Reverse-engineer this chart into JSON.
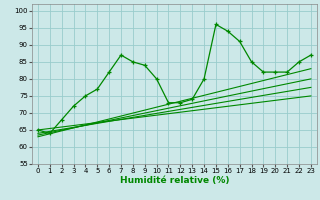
{
  "xlabel": "Humidité relative (%)",
  "bg_color": "#cce8e8",
  "grid_color": "#99cccc",
  "line_color": "#008800",
  "xlim": [
    -0.5,
    23.5
  ],
  "ylim": [
    55,
    102
  ],
  "yticks": [
    55,
    60,
    65,
    70,
    75,
    80,
    85,
    90,
    95,
    100
  ],
  "xticks": [
    0,
    1,
    2,
    3,
    4,
    5,
    6,
    7,
    8,
    9,
    10,
    11,
    12,
    13,
    14,
    15,
    16,
    17,
    18,
    19,
    20,
    21,
    22,
    23
  ],
  "data_x": [
    0,
    1,
    2,
    3,
    4,
    5,
    6,
    7,
    8,
    9,
    10,
    11,
    12,
    13,
    14,
    15,
    16,
    17,
    18,
    19,
    20,
    21,
    22,
    23
  ],
  "data_y": [
    65,
    64,
    68,
    72,
    75,
    77,
    82,
    87,
    85,
    84,
    80,
    73,
    73,
    74,
    80,
    96,
    94,
    91,
    85,
    82,
    82,
    82,
    85,
    87
  ],
  "reg_lines": [
    [
      65.0,
      75.0
    ],
    [
      64.0,
      77.5
    ],
    [
      63.5,
      80.0
    ],
    [
      63.0,
      83.0
    ]
  ],
  "xlabel_fontsize": 6.5,
  "tick_fontsize": 5.0
}
